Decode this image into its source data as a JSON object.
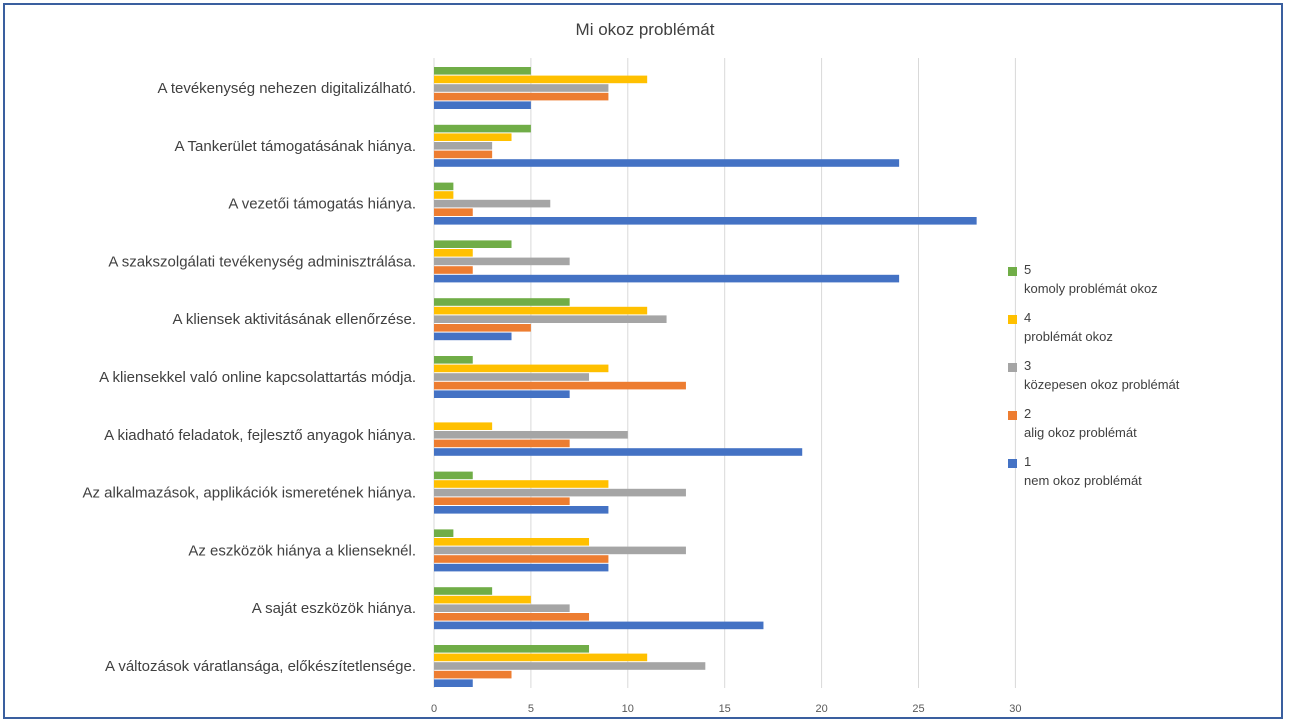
{
  "chart_data": {
    "type": "bar",
    "orientation": "horizontal",
    "title": "Mi okoz problémát",
    "xlim": [
      0,
      30
    ],
    "xticks": [
      0,
      5,
      10,
      15,
      20,
      25,
      30
    ],
    "grid": true,
    "legend_position": "right",
    "categories": [
      "A tevékenység nehezen digitalizálható.",
      "A Tankerület támogatásának hiánya.",
      "A vezetői támogatás hiánya.",
      "A szakszolgálati tevékenység adminisztrálása.",
      "A kliensek aktivitásának ellenőrzése.",
      "A kliensekkel való online kapcsolattartás módja.",
      "A kiadható feladatok, fejlesztő anyagok hiánya.",
      "Az alkalmazások, applikációk ismeretének hiánya.",
      "Az eszközök hiánya a klienseknél.",
      "A saját eszközök hiánya.",
      "A változások váratlansága, előkészítetlensége."
    ],
    "series": [
      {
        "name": "5",
        "label": "komoly problémát okoz",
        "color": "#70ad47",
        "values": [
          5,
          5,
          1,
          4,
          7,
          2,
          0,
          2,
          1,
          3,
          8
        ]
      },
      {
        "name": "4",
        "label": "problémát okoz",
        "color": "#ffc000",
        "values": [
          11,
          4,
          1,
          2,
          11,
          9,
          3,
          9,
          8,
          5,
          11
        ]
      },
      {
        "name": "3",
        "label": "közepesen okoz problémát",
        "color": "#a5a5a5",
        "values": [
          9,
          3,
          6,
          7,
          12,
          8,
          10,
          13,
          13,
          7,
          14
        ]
      },
      {
        "name": "2",
        "label": "alig okoz problémát",
        "color": "#ed7d31",
        "values": [
          9,
          3,
          2,
          2,
          5,
          13,
          7,
          7,
          9,
          8,
          4
        ]
      },
      {
        "name": "1",
        "label": "nem okoz problémát",
        "color": "#4472c4",
        "values": [
          5,
          24,
          28,
          24,
          4,
          7,
          19,
          9,
          9,
          17,
          2
        ]
      }
    ]
  }
}
